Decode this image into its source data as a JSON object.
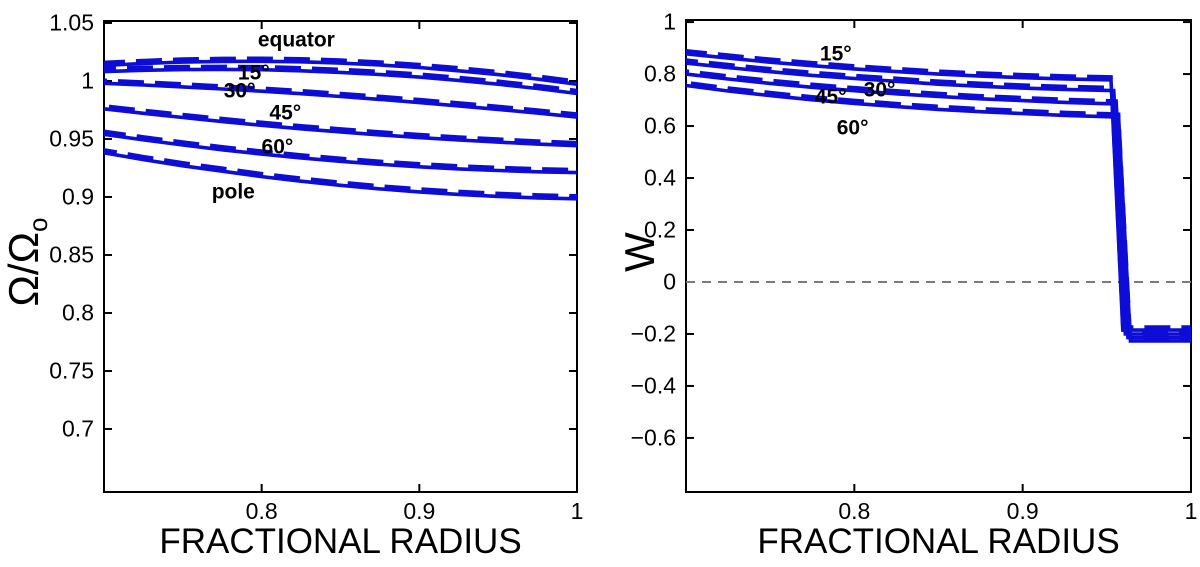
{
  "figure": {
    "background": "#ffffff",
    "axes_color": "#000000"
  },
  "chart_data": [
    {
      "id": "omega-panel",
      "type": "line",
      "title": "",
      "xlabel": "FRACTIONAL RADIUS",
      "ylabel": "Ω/Ω_o",
      "ylabel_main": "Ω/Ω",
      "ylabel_sub": "o",
      "xlim": [
        0.7,
        1.0
      ],
      "ylim": [
        0.6457,
        1.0517
      ],
      "grid": false,
      "line_color": "#0d0dd6",
      "xticks": [
        {
          "v": 0.8,
          "label": "0.8"
        },
        {
          "v": 0.9,
          "label": "0.9"
        },
        {
          "v": 1.0,
          "label": "1"
        }
      ],
      "yticks": [
        {
          "v": 1.05,
          "label": "1.05"
        },
        {
          "v": 1.0,
          "label": "1"
        },
        {
          "v": 0.95,
          "label": "0.95"
        },
        {
          "v": 0.9,
          "label": "0.9"
        },
        {
          "v": 0.85,
          "label": "0.85"
        },
        {
          "v": 0.8,
          "label": "0.8"
        },
        {
          "v": 0.75,
          "label": "0.75"
        },
        {
          "v": 0.7,
          "label": "0.7"
        }
      ],
      "zero_line": false,
      "series": [
        {
          "name": "equator",
          "style": "solid-plus-dashed",
          "label": {
            "text": "equator",
            "x": 0.822,
            "y": 1.035
          },
          "x": [
            0.7,
            0.725,
            0.75,
            0.775,
            0.8,
            0.825,
            0.85,
            0.875,
            0.9,
            0.925,
            0.95,
            0.975,
            1.0
          ],
          "y": [
            1.0134,
            1.0151,
            1.0163,
            1.0169,
            1.017,
            1.0165,
            1.0154,
            1.0138,
            1.0116,
            1.0088,
            1.0055,
            1.0016,
            0.9972
          ]
        },
        {
          "name": "15deg",
          "style": "solid-plus-dashed",
          "label": {
            "text": "15°",
            "x": 0.795,
            "y": 1.007
          },
          "x": [
            0.7,
            0.725,
            0.75,
            0.775,
            0.8,
            0.825,
            0.85,
            0.875,
            0.9,
            0.925,
            0.95,
            0.975,
            1.0
          ],
          "y": [
            1.0081,
            1.0092,
            1.0098,
            1.01,
            1.0097,
            1.0088,
            1.0074,
            1.0056,
            1.0033,
            1.0005,
            0.9972,
            0.9935,
            0.9892
          ]
        },
        {
          "name": "30deg",
          "style": "solid-plus-dashed",
          "label": {
            "text": "30°",
            "x": 0.786,
            "y": 0.991
          },
          "x": [
            0.7,
            0.725,
            0.75,
            0.775,
            0.8,
            0.825,
            0.85,
            0.875,
            0.9,
            0.925,
            0.95,
            0.975,
            1.0
          ],
          "y": [
            0.998,
            0.9965,
            0.9949,
            0.9931,
            0.9912,
            0.989,
            0.9866,
            0.9841,
            0.9814,
            0.9785,
            0.9755,
            0.9723,
            0.9689
          ]
        },
        {
          "name": "45deg",
          "style": "solid-plus-dashed",
          "label": {
            "text": "45°",
            "x": 0.815,
            "y": 0.972
          },
          "x": [
            0.7,
            0.725,
            0.75,
            0.775,
            0.8,
            0.825,
            0.85,
            0.875,
            0.9,
            0.925,
            0.95,
            0.975,
            1.0
          ],
          "y": [
            0.976,
            0.9721,
            0.9685,
            0.965,
            0.9618,
            0.9588,
            0.9561,
            0.9535,
            0.9512,
            0.9491,
            0.9473,
            0.9456,
            0.9442
          ]
        },
        {
          "name": "60deg",
          "style": "solid-plus-dashed",
          "label": {
            "text": "60°",
            "x": 0.81,
            "y": 0.943
          },
          "x": [
            0.7,
            0.725,
            0.75,
            0.775,
            0.8,
            0.825,
            0.85,
            0.875,
            0.9,
            0.925,
            0.95,
            0.975,
            1.0
          ],
          "y": [
            0.954,
            0.9492,
            0.9448,
            0.9407,
            0.937,
            0.9337,
            0.9308,
            0.9282,
            0.926,
            0.9242,
            0.9228,
            0.9217,
            0.921
          ]
        },
        {
          "name": "pole",
          "style": "solid-plus-dashed",
          "label": {
            "text": "pole",
            "x": 0.782,
            "y": 0.904
          },
          "x": [
            0.7,
            0.725,
            0.75,
            0.775,
            0.8,
            0.825,
            0.85,
            0.875,
            0.9,
            0.925,
            0.95,
            0.975,
            1.0
          ],
          "y": [
            0.938,
            0.9322,
            0.9269,
            0.9222,
            0.9176,
            0.9136,
            0.9101,
            0.907,
            0.9044,
            0.9022,
            0.9005,
            0.8992,
            0.8984
          ]
        }
      ]
    },
    {
      "id": "w-panel",
      "type": "line",
      "title": "",
      "xlabel": "FRACTIONAL RADIUS",
      "ylabel": "W",
      "xlim": [
        0.7,
        1.0
      ],
      "ylim": [
        -0.808,
        1.008
      ],
      "grid": false,
      "line_color": "#0d0dd6",
      "xticks": [
        {
          "v": 0.8,
          "label": "0.8"
        },
        {
          "v": 0.9,
          "label": "0.9"
        },
        {
          "v": 1.0,
          "label": "1"
        }
      ],
      "yticks": [
        {
          "v": 1.0,
          "label": "1"
        },
        {
          "v": 0.8,
          "label": "0.8"
        },
        {
          "v": 0.6,
          "label": "0.6"
        },
        {
          "v": 0.4,
          "label": "0.4"
        },
        {
          "v": 0.2,
          "label": "0.2"
        },
        {
          "v": 0.0,
          "label": "0"
        },
        {
          "v": -0.2,
          "label": "−0.2"
        },
        {
          "v": -0.4,
          "label": "−0.4"
        },
        {
          "v": -0.6,
          "label": "−0.6"
        }
      ],
      "zero_line": true,
      "zero_line_color": "#7a7a7a",
      "series": [
        {
          "name": "15deg",
          "style": "solid-plus-dashed",
          "label": {
            "text": "15°",
            "x": 0.789,
            "y": 0.877
          },
          "x": [
            0.7,
            0.725,
            0.75,
            0.775,
            0.8,
            0.825,
            0.85,
            0.875,
            0.9,
            0.925,
            0.95,
            0.9525,
            0.9595,
            1.0
          ],
          "y": [
            0.878,
            0.8615,
            0.8455,
            0.8323,
            0.82,
            0.8093,
            0.8,
            0.7923,
            0.786,
            0.7813,
            0.778,
            0.7775,
            -0.185,
            -0.185
          ]
        },
        {
          "name": "30deg",
          "style": "solid-plus-dashed",
          "label": {
            "text": "30°",
            "x": 0.815,
            "y": 0.738
          },
          "x": [
            0.7,
            0.725,
            0.75,
            0.775,
            0.8,
            0.825,
            0.85,
            0.875,
            0.9,
            0.925,
            0.95,
            0.954,
            0.961,
            1.0
          ],
          "y": [
            0.842,
            0.825,
            0.809,
            0.795,
            0.7828,
            0.772,
            0.761,
            0.7528,
            0.746,
            0.7408,
            0.737,
            0.7365,
            -0.2,
            -0.2
          ]
        },
        {
          "name": "45deg",
          "style": "solid-plus-dashed",
          "label": {
            "text": "45°",
            "x": 0.786,
            "y": 0.712
          },
          "x": [
            0.7,
            0.725,
            0.75,
            0.775,
            0.8,
            0.825,
            0.85,
            0.875,
            0.9,
            0.925,
            0.95,
            0.9555,
            0.9625,
            1.0
          ],
          "y": [
            0.8,
            0.781,
            0.764,
            0.749,
            0.736,
            0.724,
            0.714,
            0.705,
            0.698,
            0.691,
            0.686,
            0.685,
            -0.214,
            -0.214
          ]
        },
        {
          "name": "60deg",
          "style": "solid-plus-dashed",
          "label": {
            "text": "60°",
            "x": 0.799,
            "y": 0.592
          },
          "x": [
            0.7,
            0.725,
            0.75,
            0.775,
            0.8,
            0.825,
            0.85,
            0.875,
            0.9,
            0.925,
            0.95,
            0.957,
            0.964,
            1.0
          ],
          "y": [
            0.756,
            0.735,
            0.717,
            0.701,
            0.687,
            0.675,
            0.664,
            0.655,
            0.648,
            0.641,
            0.636,
            0.634,
            -0.227,
            -0.227
          ]
        }
      ]
    }
  ]
}
